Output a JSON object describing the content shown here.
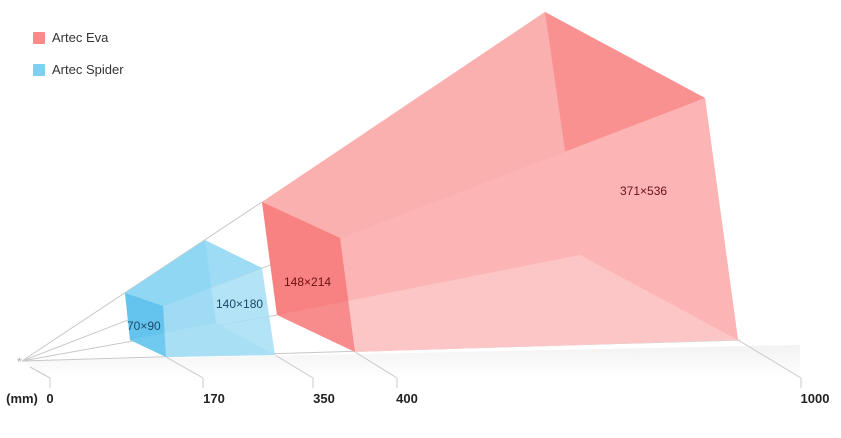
{
  "legend": [
    {
      "label": "Artec Eva",
      "color": "#f88a8a"
    },
    {
      "label": "Artec Spider",
      "color": "#7fd0f0"
    }
  ],
  "labels": {
    "spider_near": "70×90",
    "spider_far": "140×180",
    "eva_near": "148×214",
    "eva_far": "371×536"
  },
  "axis": {
    "unit": "(mm)",
    "ticks": [
      "0",
      "170",
      "350",
      "400",
      "1000"
    ]
  }
}
